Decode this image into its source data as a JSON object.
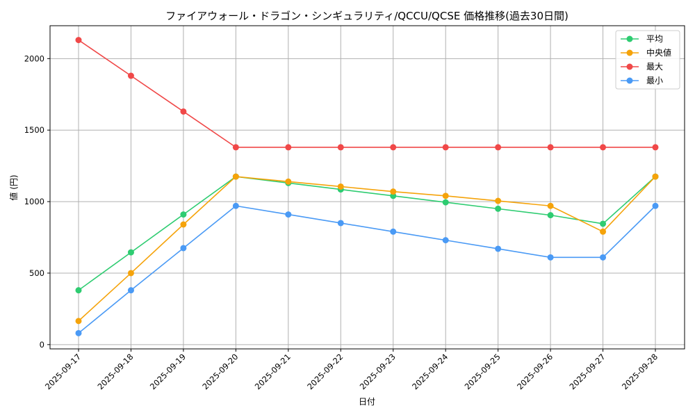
{
  "chart_data": {
    "type": "line",
    "title": "ファイアウォール・ドラゴン・シンギュラリティ/QCCU/QCSE 価格推移(過去30日間)",
    "xlabel": "日付",
    "ylabel": "値 (円)",
    "categories": [
      "2025-09-17",
      "2025-09-18",
      "2025-09-19",
      "2025-09-20",
      "2025-09-21",
      "2025-09-22",
      "2025-09-23",
      "2025-09-24",
      "2025-09-25",
      "2025-09-26",
      "2025-09-27",
      "2025-09-28"
    ],
    "ylim": [
      -30,
      2230
    ],
    "yticks": [
      0,
      500,
      1000,
      1500,
      2000
    ],
    "grid": true,
    "legend_position": "top-right",
    "series": [
      {
        "name": "平均",
        "color": "#2ecc71",
        "values": [
          380,
          645,
          910,
          1175,
          1130,
          1085,
          1040,
          995,
          950,
          905,
          845,
          1175
        ]
      },
      {
        "name": "中央値",
        "color": "#f5a30a",
        "values": [
          165,
          500,
          840,
          1175,
          1140,
          1105,
          1070,
          1040,
          1005,
          970,
          790,
          1175
        ]
      },
      {
        "name": "最大",
        "color": "#f04848",
        "values": [
          2130,
          1880,
          1630,
          1380,
          1380,
          1380,
          1380,
          1380,
          1380,
          1380,
          1380,
          1380
        ]
      },
      {
        "name": "最小",
        "color": "#4a9af5",
        "values": [
          80,
          380,
          675,
          970,
          910,
          850,
          790,
          730,
          670,
          610,
          610,
          970
        ]
      }
    ]
  }
}
